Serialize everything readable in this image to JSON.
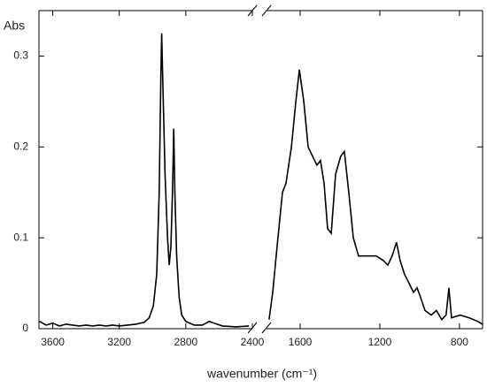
{
  "chart_data": {
    "type": "line",
    "y_label": "Abs",
    "x_label": "wavenumber (cm⁻¹)",
    "color": "#000000",
    "ylim": [
      0,
      0.35
    ],
    "yticks": [
      0,
      0.1,
      0.2,
      0.3
    ],
    "segments": [
      {
        "xlim": [
          3683,
          2400
        ],
        "xticks": [
          3600,
          3200,
          2800,
          2400
        ],
        "x": [
          3680,
          3640,
          3600,
          3560,
          3520,
          3480,
          3440,
          3400,
          3360,
          3320,
          3280,
          3240,
          3200,
          3150,
          3100,
          3050,
          3020,
          2995,
          2975,
          2960,
          2950,
          2945,
          2938,
          2925,
          2910,
          2900,
          2890,
          2880,
          2873,
          2866,
          2855,
          2840,
          2825,
          2800,
          2750,
          2700,
          2660,
          2630,
          2580,
          2500,
          2420
        ],
        "values": [
          0.008,
          0.004,
          0.006,
          0.003,
          0.005,
          0.004,
          0.003,
          0.004,
          0.003,
          0.004,
          0.003,
          0.004,
          0.003,
          0.004,
          0.005,
          0.007,
          0.012,
          0.025,
          0.06,
          0.15,
          0.28,
          0.325,
          0.27,
          0.17,
          0.1,
          0.07,
          0.09,
          0.15,
          0.22,
          0.15,
          0.08,
          0.035,
          0.015,
          0.008,
          0.004,
          0.004,
          0.008,
          0.006,
          0.003,
          0.002,
          0.003
        ]
      },
      {
        "xlim": [
          1769,
          684
        ],
        "xticks": [
          1600,
          1200,
          800
        ],
        "x": [
          1756,
          1738,
          1716,
          1689,
          1671,
          1644,
          1622,
          1604,
          1582,
          1560,
          1538,
          1516,
          1498,
          1480,
          1462,
          1444,
          1422,
          1396,
          1378,
          1356,
          1333,
          1307,
          1267,
          1218,
          1182,
          1160,
          1138,
          1116,
          1098,
          1076,
          1053,
          1031,
          1013,
          996,
          973,
          942,
          916,
          889,
          867,
          853,
          840,
          796,
          751,
          707,
          686
        ],
        "values": [
          0.01,
          0.04,
          0.09,
          0.15,
          0.16,
          0.2,
          0.25,
          0.285,
          0.25,
          0.2,
          0.19,
          0.18,
          0.185,
          0.16,
          0.11,
          0.105,
          0.17,
          0.19,
          0.195,
          0.15,
          0.1,
          0.08,
          0.08,
          0.08,
          0.075,
          0.07,
          0.08,
          0.095,
          0.075,
          0.06,
          0.05,
          0.04,
          0.045,
          0.035,
          0.02,
          0.015,
          0.02,
          0.01,
          0.015,
          0.045,
          0.012,
          0.015,
          0.012,
          0.008,
          0.005
        ]
      }
    ]
  }
}
